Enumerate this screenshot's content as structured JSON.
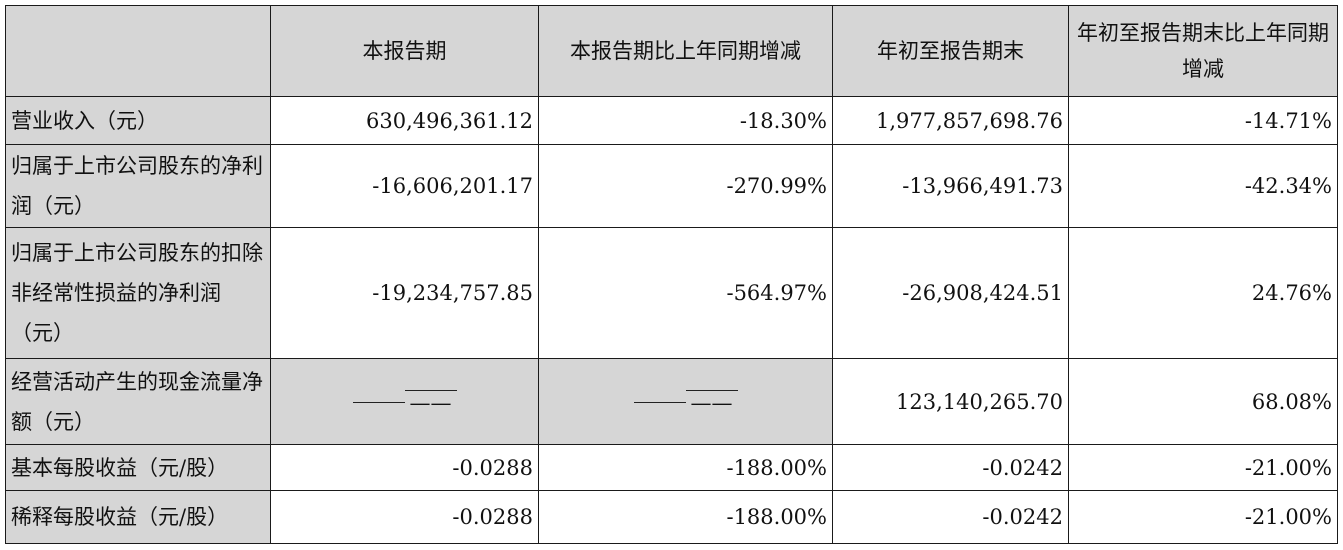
{
  "headers": [
    "",
    "本报告期",
    "本报告期比上年同期增减",
    "年初至报告期末",
    "年初至报告期末比上年同期增减"
  ],
  "rows": [
    {
      "label": "营业收入（元）",
      "cells": [
        "630,496,361.12",
        "-18.30%",
        "1,977,857,698.76",
        "-14.71%"
      ]
    },
    {
      "label": "归属于上市公司股东的净利润（元）",
      "cells": [
        "-16,606,201.17",
        "-270.99%",
        "-13,966,491.73",
        "-42.34%"
      ]
    },
    {
      "label": "归属于上市公司股东的扣除非经常性损益的净利润（元）",
      "cells": [
        "-19,234,757.85",
        "-564.97%",
        "-26,908,424.51",
        "24.76%"
      ]
    },
    {
      "label": "经营活动产生的现金流量净额（元）",
      "cells": [
        "——",
        "——",
        "123,140,265.70",
        "68.08%"
      ]
    },
    {
      "label": "基本每股收益（元/股）",
      "cells": [
        "-0.0288",
        "-188.00%",
        "-0.0242",
        "-21.00%"
      ]
    },
    {
      "label": "稀释每股收益（元/股）",
      "cells": [
        "-0.0288",
        "-188.00%",
        "-0.0242",
        "-21.00%"
      ]
    }
  ]
}
